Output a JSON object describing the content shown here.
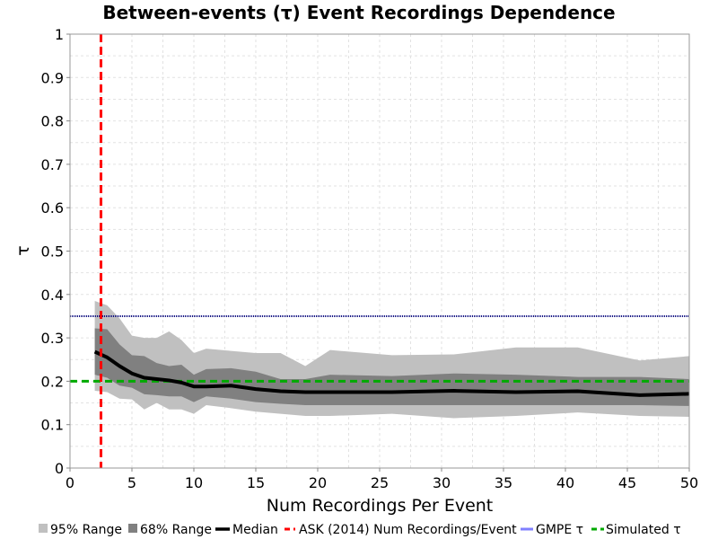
{
  "chart_data": {
    "type": "area",
    "title": "Between-events (τ) Event Recordings Dependence",
    "xlabel": "Num Recordings Per Event",
    "ylabel": "τ",
    "xlim": [
      0,
      50
    ],
    "ylim": [
      0,
      1
    ],
    "xticks": [
      0,
      5,
      10,
      15,
      20,
      25,
      30,
      35,
      40,
      45,
      50
    ],
    "yticks": [
      0,
      0.1,
      0.2,
      0.3,
      0.4,
      0.5,
      0.6,
      0.7,
      0.8,
      0.9,
      1
    ],
    "grid": true,
    "legend_placement": "bottom",
    "x": [
      2,
      3,
      4,
      5,
      6,
      7,
      8,
      9,
      10,
      11,
      13,
      15,
      17,
      19,
      21,
      26,
      31,
      36,
      41,
      46,
      50
    ],
    "range95": {
      "name": "95% Range",
      "color": "#c0c0c0",
      "upper": [
        0.385,
        0.375,
        0.345,
        0.305,
        0.3,
        0.3,
        0.315,
        0.295,
        0.265,
        0.275,
        0.27,
        0.265,
        0.265,
        0.235,
        0.272,
        0.26,
        0.262,
        0.278,
        0.278,
        0.248,
        0.258
      ],
      "lower": [
        0.178,
        0.175,
        0.16,
        0.158,
        0.135,
        0.15,
        0.135,
        0.135,
        0.125,
        0.145,
        0.138,
        0.13,
        0.125,
        0.12,
        0.12,
        0.125,
        0.115,
        0.12,
        0.128,
        0.12,
        0.118
      ]
    },
    "range68": {
      "name": "68% Range",
      "color": "#808080",
      "upper": [
        0.322,
        0.32,
        0.285,
        0.26,
        0.258,
        0.242,
        0.235,
        0.238,
        0.215,
        0.228,
        0.23,
        0.222,
        0.205,
        0.205,
        0.215,
        0.212,
        0.218,
        0.215,
        0.21,
        0.21,
        0.205
      ],
      "lower": [
        0.215,
        0.208,
        0.19,
        0.185,
        0.17,
        0.168,
        0.165,
        0.165,
        0.152,
        0.165,
        0.16,
        0.152,
        0.148,
        0.145,
        0.145,
        0.145,
        0.145,
        0.145,
        0.145,
        0.145,
        0.143
      ]
    },
    "median": {
      "name": "Median",
      "color": "#000000",
      "values": [
        0.268,
        0.255,
        0.235,
        0.218,
        0.208,
        0.205,
        0.202,
        0.197,
        0.188,
        0.188,
        0.19,
        0.182,
        0.177,
        0.175,
        0.175,
        0.175,
        0.178,
        0.175,
        0.177,
        0.168,
        0.171
      ]
    },
    "ask_line": {
      "name": "ASK (2014) Num Recordings/Event",
      "color": "#ff0000",
      "x": 2.5
    },
    "gmpe_line": {
      "name": "GMPE τ",
      "legend_color": "#8080ff",
      "line_color": "#000080",
      "y": 0.35
    },
    "simulated_line": {
      "name": "Simulated τ",
      "color": "#00aa00",
      "y": 0.2
    }
  }
}
